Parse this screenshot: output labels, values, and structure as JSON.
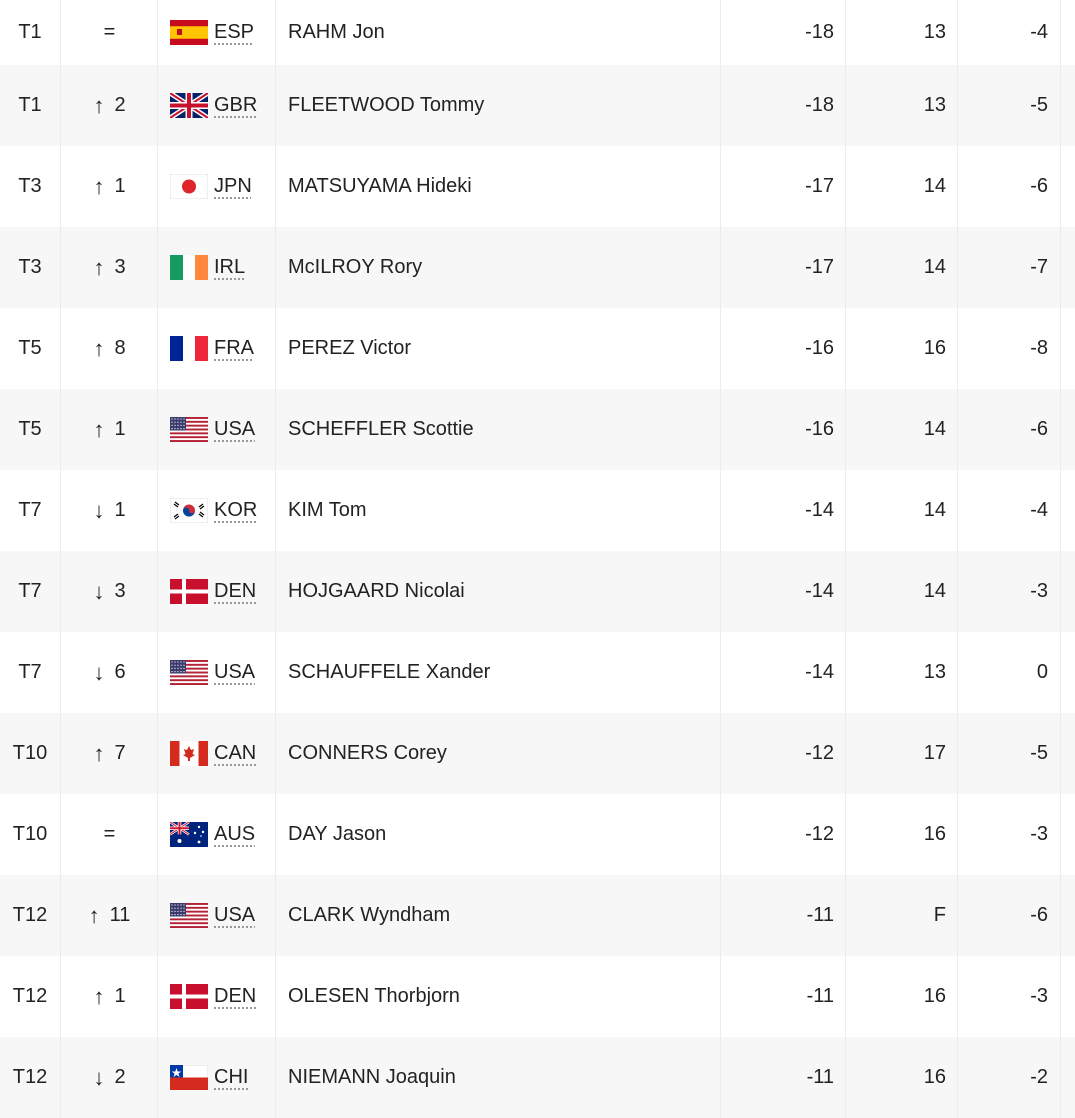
{
  "rows": [
    {
      "pos": "T1",
      "move_dir": "same",
      "move_text": "=",
      "country": "ESP",
      "flag": "esp",
      "name": "RAHM Jon",
      "total": "-18",
      "thru": "13",
      "today": "-4"
    },
    {
      "pos": "T1",
      "move_dir": "up",
      "move_text": "2",
      "country": "GBR",
      "flag": "gbr",
      "name": "FLEETWOOD Tommy",
      "total": "-18",
      "thru": "13",
      "today": "-5"
    },
    {
      "pos": "T3",
      "move_dir": "up",
      "move_text": "1",
      "country": "JPN",
      "flag": "jpn",
      "name": "MATSUYAMA Hideki",
      "total": "-17",
      "thru": "14",
      "today": "-6"
    },
    {
      "pos": "T3",
      "move_dir": "up",
      "move_text": "3",
      "country": "IRL",
      "flag": "irl",
      "name": "McILROY Rory",
      "total": "-17",
      "thru": "14",
      "today": "-7"
    },
    {
      "pos": "T5",
      "move_dir": "up",
      "move_text": "8",
      "country": "FRA",
      "flag": "fra",
      "name": "PEREZ Victor",
      "total": "-16",
      "thru": "16",
      "today": "-8"
    },
    {
      "pos": "T5",
      "move_dir": "up",
      "move_text": "1",
      "country": "USA",
      "flag": "usa",
      "name": "SCHEFFLER Scottie",
      "total": "-16",
      "thru": "14",
      "today": "-6"
    },
    {
      "pos": "T7",
      "move_dir": "down",
      "move_text": "1",
      "country": "KOR",
      "flag": "kor",
      "name": "KIM Tom",
      "total": "-14",
      "thru": "14",
      "today": "-4"
    },
    {
      "pos": "T7",
      "move_dir": "down",
      "move_text": "3",
      "country": "DEN",
      "flag": "den",
      "name": "HOJGAARD Nicolai",
      "total": "-14",
      "thru": "14",
      "today": "-3"
    },
    {
      "pos": "T7",
      "move_dir": "down",
      "move_text": "6",
      "country": "USA",
      "flag": "usa",
      "name": "SCHAUFFELE Xander",
      "total": "-14",
      "thru": "13",
      "today": "0"
    },
    {
      "pos": "T10",
      "move_dir": "up",
      "move_text": "7",
      "country": "CAN",
      "flag": "can",
      "name": "CONNERS Corey",
      "total": "-12",
      "thru": "17",
      "today": "-5"
    },
    {
      "pos": "T10",
      "move_dir": "same",
      "move_text": "=",
      "country": "AUS",
      "flag": "aus",
      "name": "DAY Jason",
      "total": "-12",
      "thru": "16",
      "today": "-3"
    },
    {
      "pos": "T12",
      "move_dir": "up",
      "move_text": "11",
      "country": "USA",
      "flag": "usa",
      "name": "CLARK Wyndham",
      "total": "-11",
      "thru": "F",
      "today": "-6"
    },
    {
      "pos": "T12",
      "move_dir": "up",
      "move_text": "1",
      "country": "DEN",
      "flag": "den",
      "name": "OLESEN Thorbjorn",
      "total": "-11",
      "thru": "16",
      "today": "-3"
    },
    {
      "pos": "T12",
      "move_dir": "down",
      "move_text": "2",
      "country": "CHI",
      "flag": "chi",
      "name": "NIEMANN Joaquin",
      "total": "-11",
      "thru": "16",
      "today": "-2"
    }
  ],
  "arrows": {
    "up": "↑",
    "down": "↓"
  },
  "colors": {
    "row_alt": "#f7f7f7",
    "text": "#222222",
    "separator": "#ececec"
  }
}
